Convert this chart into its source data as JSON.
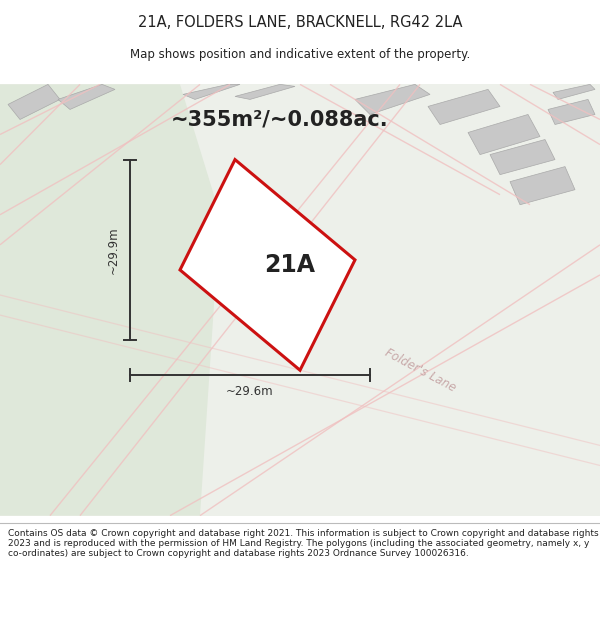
{
  "title_line1": "21A, FOLDERS LANE, BRACKNELL, RG42 2LA",
  "title_line2": "Map shows position and indicative extent of the property.",
  "area_label": "~355m²/~0.088ac.",
  "plot_label": "21A",
  "width_label": "~29.6m",
  "height_label": "~29.9m",
  "street_label": "Folder's Lane",
  "footer_text": "Contains OS data © Crown copyright and database right 2021. This information is subject to Crown copyright and database rights 2023 and is reproduced with the permission of HM Land Registry. The polygons (including the associated geometry, namely x, y co-ordinates) are subject to Crown copyright and database rights 2023 Ordnance Survey 100026316.",
  "map_bg_left": "#e8ede4",
  "map_bg_right": "#f0f0ee",
  "white": "#ffffff",
  "red": "#cc1111",
  "light_red": "#f0c0c0",
  "light_red2": "#e8b0b0",
  "gray_building": "#c8c8c8",
  "gray_building2": "#d5d5d5",
  "dark_gray": "#222222",
  "dim_color": "#333333",
  "street_label_color": "#c8aaaa",
  "footer_color": "#222222",
  "separator_color": "#bbbbbb"
}
